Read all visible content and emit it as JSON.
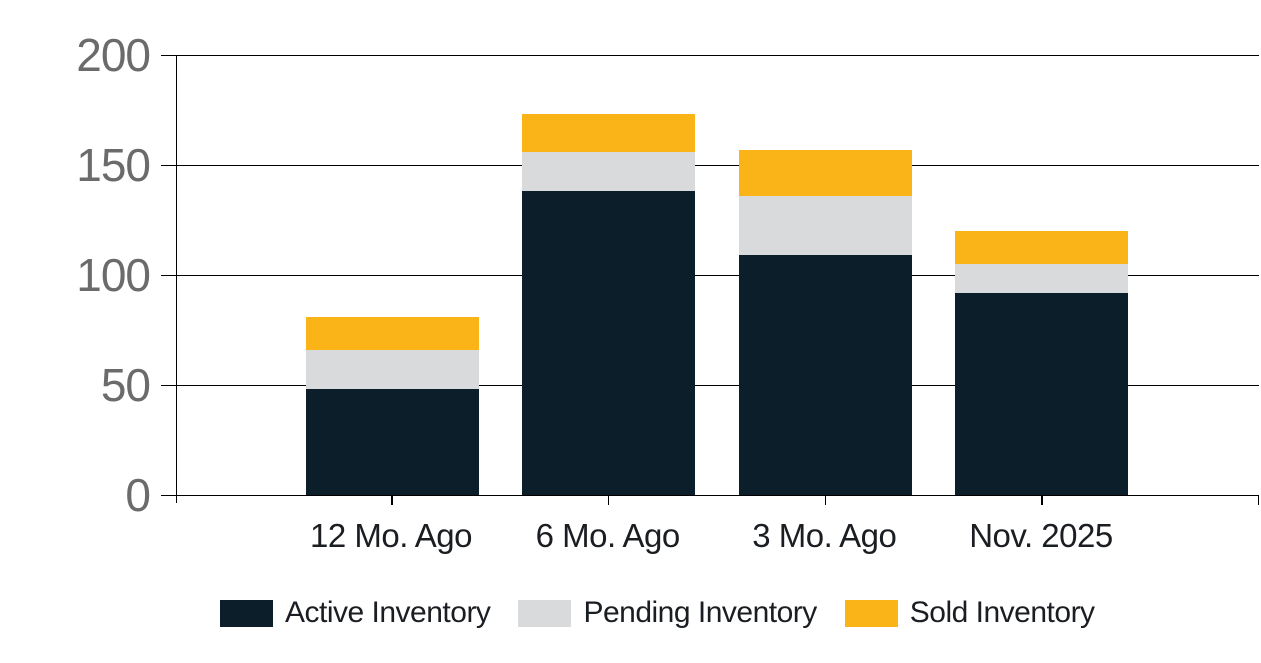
{
  "chart_data": {
    "type": "bar",
    "stacked": true,
    "title": "",
    "xlabel": "",
    "ylabel": "",
    "categories": [
      "12 Mo. Ago",
      "6 Mo. Ago",
      "3 Mo. Ago",
      "Nov. 2025"
    ],
    "series": [
      {
        "name": "Active Inventory",
        "color": "#0c1e2a",
        "values": [
          48,
          138,
          109,
          92
        ]
      },
      {
        "name": "Pending Inventory",
        "color": "#d9dadb",
        "values": [
          18,
          18,
          27,
          13
        ]
      },
      {
        "name": "Sold Inventory",
        "color": "#fbb418",
        "values": [
          15,
          17,
          21,
          15
        ]
      }
    ],
    "ylim": [
      0,
      200
    ],
    "yticks": [
      0,
      50,
      100,
      150,
      200
    ],
    "grid": true,
    "legend_position": "bottom"
  },
  "colors": {
    "background": "#ffffff",
    "axis_line": "#000000",
    "gridline": "#000000",
    "y_tick_label": "#6b6b6b",
    "x_tick_label": "#1a1d21",
    "legend_text": "#1a1d21"
  }
}
